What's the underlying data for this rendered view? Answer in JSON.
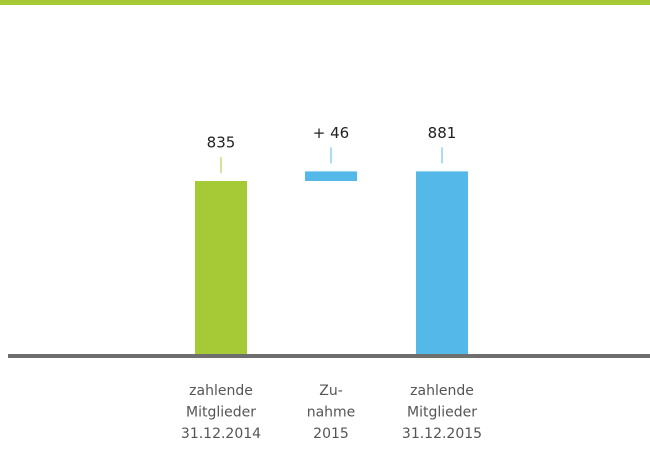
{
  "chart_data": {
    "type": "waterfall",
    "categories": [
      [
        "zahlende",
        "Mitglieder",
        "31.12.2014"
      ],
      [
        "Zu-",
        "nahme",
        "2015"
      ],
      [
        "zahlende",
        "Mitglieder",
        "31.12.2015"
      ]
    ],
    "values": [
      835,
      46,
      881
    ],
    "value_labels": [
      "835",
      "+ 46",
      "881"
    ],
    "totals": [
      true,
      false,
      true
    ],
    "colors": [
      "#a6c936",
      "#54b8e8",
      "#54b8e8"
    ],
    "ylim": [
      0,
      1000
    ]
  }
}
